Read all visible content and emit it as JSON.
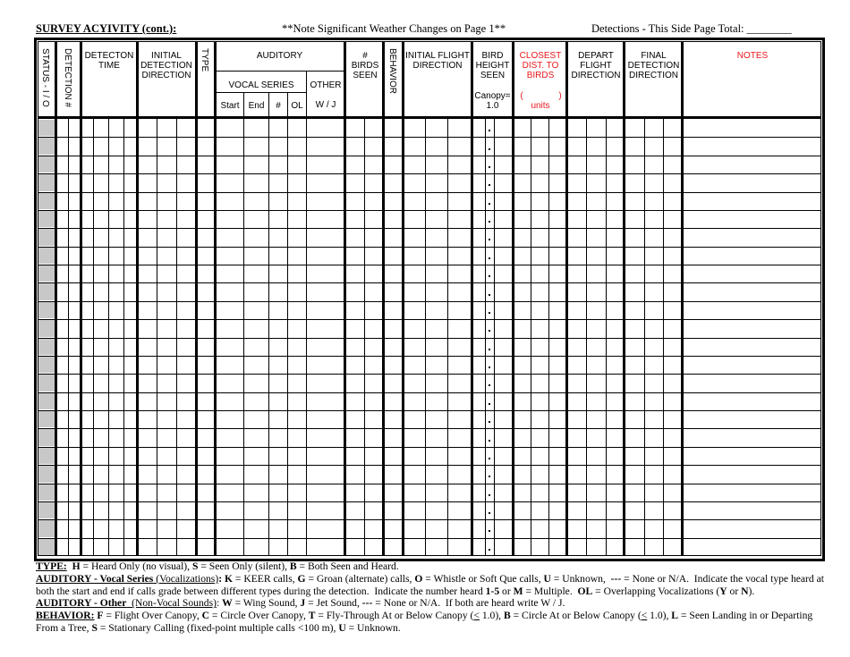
{
  "title_bar": {
    "section_title": "SURVEY ACYIVITY (cont.):",
    "weather_note": "**Note Significant Weather Changes on Page 1**",
    "page_total_label": "Detections - This Side Page Total: ________"
  },
  "columns": {
    "status": "STATUS - I / O",
    "detection_number": "DETECTION #",
    "detection_time": "DETECTON TIME",
    "initial_detection_direction": "INITIAL DETECTION DIRECTION",
    "type": "TYPE",
    "auditory": "AUDITORY",
    "vocal_series": "VOCAL SERIES",
    "start": "Start",
    "end": "End",
    "number": "#",
    "ol": "OL",
    "other": "OTHER",
    "other_sub": "W / J",
    "birds_seen": "# BIRDS SEEN",
    "behavior": "BEHAVIOR",
    "initial_flight_direction": "INITIAL FLIGHT DIRECTION",
    "bird_height_seen": "BIRD HEIGHT SEEN",
    "canopy": "Canopy= 1.0",
    "closest_dist": "CLOSEST DIST. TO BIRDS",
    "units_paren_open": "(",
    "units_paren_close": ")",
    "units": "units",
    "depart_flight_direction": "DEPART FLIGHT DIRECTION",
    "final_detection_direction": "FINAL DETECTION DIRECTION",
    "notes": "NOTES"
  },
  "row_count": 24,
  "colors": {
    "accent_red": "#e8181c",
    "status_shade": "#c8c8c8"
  },
  "legend": [
    [
      {
        "t": "TYPE:",
        "b": 1,
        "u": 1
      },
      {
        "t": "  "
      },
      {
        "t": "H",
        "b": 1
      },
      {
        "t": " = Heard Only (no visual), "
      },
      {
        "t": "S",
        "b": 1
      },
      {
        "t": " = Seen Only (silent), "
      },
      {
        "t": "B",
        "b": 1
      },
      {
        "t": " = Both Seen and Heard."
      }
    ],
    [
      {
        "t": "AUDITORY - Vocal Series",
        "b": 1,
        "u": 1
      },
      {
        "t": " (Vocalizations)",
        "u": 1
      },
      {
        "t": ": ",
        "b": 1
      },
      {
        "t": "K",
        "b": 1
      },
      {
        "t": " = KEER calls, "
      },
      {
        "t": "G",
        "b": 1
      },
      {
        "t": " = Groan (alternate) calls, "
      },
      {
        "t": "O",
        "b": 1
      },
      {
        "t": " = Whistle or Soft Que calls, "
      },
      {
        "t": "U",
        "b": 1
      },
      {
        "t": " = Unknown,  "
      },
      {
        "t": "---",
        "b": 1
      },
      {
        "t": " = None or N/A.  Indicate the vocal type heard at both the start and end if calls grade between different types during the detection.  Indicate the number heard "
      },
      {
        "t": "1-5",
        "b": 1
      },
      {
        "t": " or "
      },
      {
        "t": "M",
        "b": 1
      },
      {
        "t": " = Multiple.  "
      },
      {
        "t": "OL",
        "b": 1
      },
      {
        "t": " = Overlapping Vocalizations ("
      },
      {
        "t": "Y",
        "b": 1
      },
      {
        "t": " or "
      },
      {
        "t": "N",
        "b": 1
      },
      {
        "t": ")."
      }
    ],
    [
      {
        "t": "AUDITORY - Other",
        "b": 1,
        "u": 1
      },
      {
        "t": "  (Non-Vocal Sounds)",
        "u": 1
      },
      {
        "t": ": "
      },
      {
        "t": "W",
        "b": 1
      },
      {
        "t": " = Wing Sound, "
      },
      {
        "t": "J",
        "b": 1
      },
      {
        "t": " = Jet Sound, "
      },
      {
        "t": "---",
        "b": 1
      },
      {
        "t": " = None or N/A.  If both are heard write W / J."
      }
    ],
    [
      {
        "t": "BEHAVIOR:",
        "b": 1,
        "u": 1
      },
      {
        "t": " "
      },
      {
        "t": "F",
        "b": 1
      },
      {
        "t": " = Flight Over Canopy, "
      },
      {
        "t": "C",
        "b": 1
      },
      {
        "t": " = Circle Over Canopy, "
      },
      {
        "t": "T",
        "b": 1
      },
      {
        "t": " = Fly-Through At or Below Canopy ("
      },
      {
        "t": "<",
        "u": 1
      },
      {
        "t": " 1.0), "
      },
      {
        "t": "B",
        "b": 1
      },
      {
        "t": " = Circle At or Below Canopy ("
      },
      {
        "t": "<",
        "u": 1
      },
      {
        "t": " 1.0), "
      },
      {
        "t": "L",
        "b": 1
      },
      {
        "t": " = Seen Landing in or Departing From a Tree, "
      },
      {
        "t": "S",
        "b": 1
      },
      {
        "t": " = Stationary Calling (fixed-point multiple calls <100 m), "
      },
      {
        "t": "U",
        "b": 1
      },
      {
        "t": " = Unknown."
      }
    ]
  ]
}
